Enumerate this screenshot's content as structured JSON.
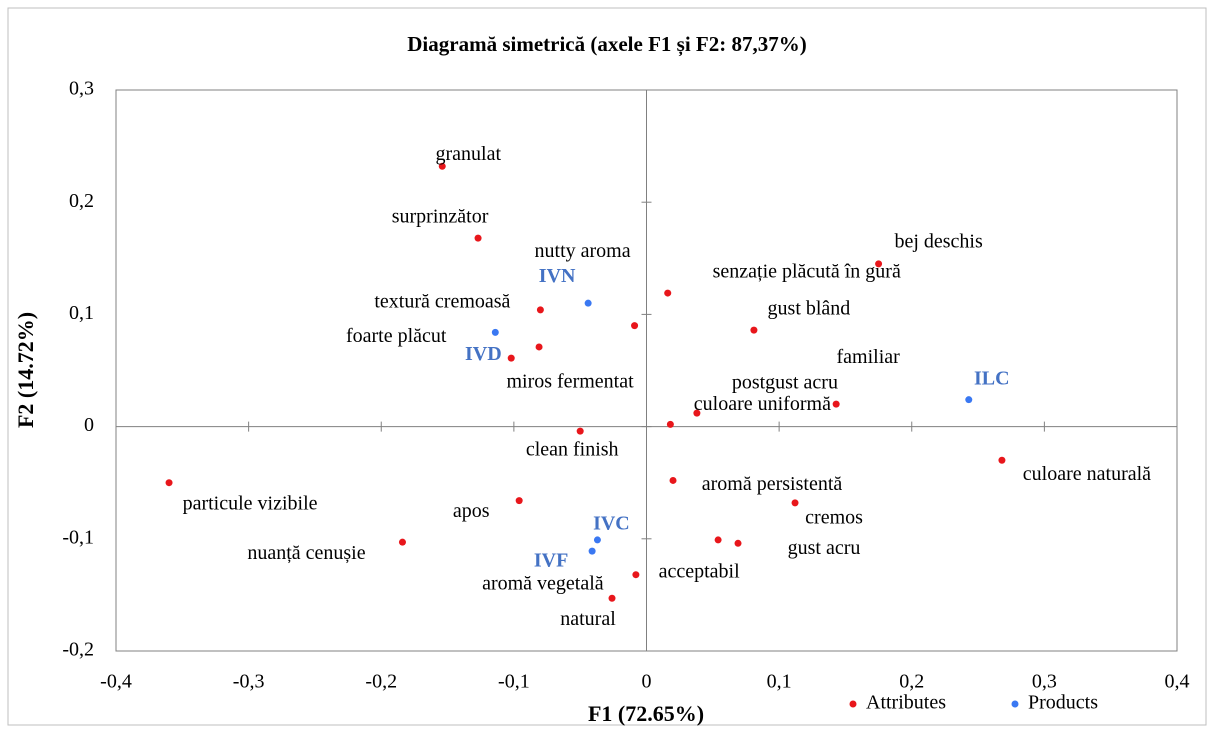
{
  "chart_data": {
    "type": "scatter",
    "title": "Diagramă simetrică (axele F1 și F2: 87,37%)",
    "x_label": "F1 (72.65%)",
    "y_label": "F2 (14.72%)",
    "xlim": [
      -0.4,
      0.4
    ],
    "ylim": [
      -0.2,
      0.3
    ],
    "xticks": [
      {
        "value": -0.4,
        "label": "-0,4"
      },
      {
        "value": -0.3,
        "label": "-0,3"
      },
      {
        "value": -0.2,
        "label": "-0,2"
      },
      {
        "value": -0.1,
        "label": "-0,1"
      },
      0,
      {
        "value": 0.1,
        "label": "0,1"
      },
      {
        "value": 0.2,
        "label": "0,2"
      },
      {
        "value": 0.3,
        "label": "0,3"
      },
      {
        "value": 0.4,
        "label": "0,4"
      }
    ],
    "yticks": [
      {
        "value": -0.2,
        "label": "-0,2"
      },
      {
        "value": -0.1,
        "label": "-0,1"
      },
      0,
      {
        "value": 0.1,
        "label": "0,1"
      },
      {
        "value": 0.2,
        "label": "0,2"
      },
      {
        "value": 0.3,
        "label": "0,3"
      }
    ],
    "legend": "bottom-right",
    "series": [
      {
        "name": "Attributes",
        "color": "#e8161b",
        "labels": [
          "granulat",
          "surprinzător",
          "textură cremoasă",
          "nutty aroma",
          "foarte plăcut",
          "miros fermentat",
          "senzație plăcută în gură",
          "gust blând",
          "bej deschis",
          "familiar",
          "postgust acru",
          "culoare uniformă",
          "clean finish",
          "culoare naturală",
          "aromă persistentă",
          "cremos",
          "apos",
          "particule vizibile",
          "nuanță cenușie",
          "acceptabil",
          "gust acru",
          "aromă vegetală",
          "natural"
        ],
        "x": [
          -0.154,
          -0.127,
          -0.08,
          -0.009,
          -0.102,
          -0.081,
          0.016,
          0.081,
          0.175,
          0.143,
          0.038,
          0.018,
          -0.05,
          0.268,
          0.02,
          0.112,
          -0.096,
          -0.36,
          -0.184,
          0.054,
          0.069,
          -0.008,
          -0.026
        ],
        "values": [
          0.232,
          0.168,
          0.104,
          0.09,
          0.061,
          0.071,
          0.119,
          0.086,
          0.145,
          0.02,
          0.012,
          0.002,
          -0.004,
          -0.03,
          -0.048,
          -0.068,
          -0.066,
          -0.05,
          -0.103,
          -0.101,
          -0.104,
          -0.132,
          -0.153
        ]
      },
      {
        "name": "Products",
        "color": "#3a78f2",
        "labels": [
          "IVN",
          "IVD",
          "ILC",
          "IVC",
          "IVF"
        ],
        "x": [
          -0.044,
          -0.114,
          0.243,
          -0.037,
          -0.041
        ],
        "values": [
          0.11,
          0.084,
          0.024,
          -0.101,
          -0.111
        ]
      }
    ]
  }
}
